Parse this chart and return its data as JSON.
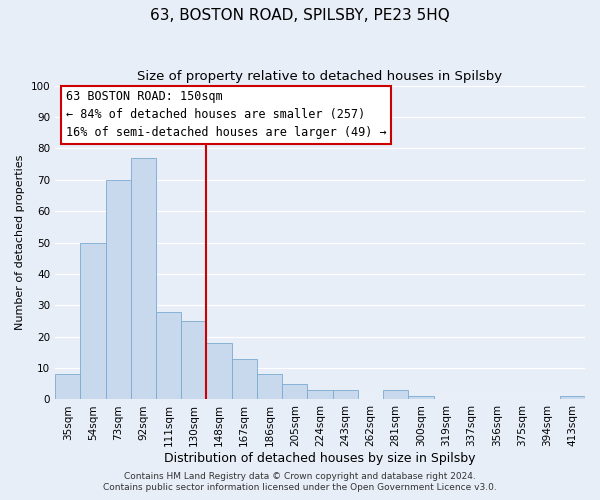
{
  "title": "63, BOSTON ROAD, SPILSBY, PE23 5HQ",
  "subtitle": "Size of property relative to detached houses in Spilsby",
  "xlabel": "Distribution of detached houses by size in Spilsby",
  "ylabel": "Number of detached properties",
  "bar_labels": [
    "35sqm",
    "54sqm",
    "73sqm",
    "92sqm",
    "111sqm",
    "130sqm",
    "148sqm",
    "167sqm",
    "186sqm",
    "205sqm",
    "224sqm",
    "243sqm",
    "262sqm",
    "281sqm",
    "300sqm",
    "319sqm",
    "337sqm",
    "356sqm",
    "375sqm",
    "394sqm",
    "413sqm"
  ],
  "bar_values": [
    8,
    50,
    70,
    77,
    28,
    25,
    18,
    13,
    8,
    5,
    3,
    3,
    0,
    3,
    1,
    0,
    0,
    0,
    0,
    0,
    1
  ],
  "bar_color": "#c8d9ee",
  "bar_edge_color": "#7aaad0",
  "vline_color": "#cc0000",
  "ylim": [
    0,
    100
  ],
  "annotation_title": "63 BOSTON ROAD: 150sqm",
  "annotation_line1": "← 84% of detached houses are smaller (257)",
  "annotation_line2": "16% of semi-detached houses are larger (49) →",
  "annotation_box_color": "#ffffff",
  "annotation_box_edge": "#cc0000",
  "footer1": "Contains HM Land Registry data © Crown copyright and database right 2024.",
  "footer2": "Contains public sector information licensed under the Open Government Licence v3.0.",
  "background_color": "#e8eef8",
  "grid_color": "#ffffff",
  "title_fontsize": 11,
  "subtitle_fontsize": 9.5,
  "xlabel_fontsize": 9,
  "ylabel_fontsize": 8,
  "tick_fontsize": 7.5,
  "ann_fontsize": 8.5,
  "footer_fontsize": 6.5
}
